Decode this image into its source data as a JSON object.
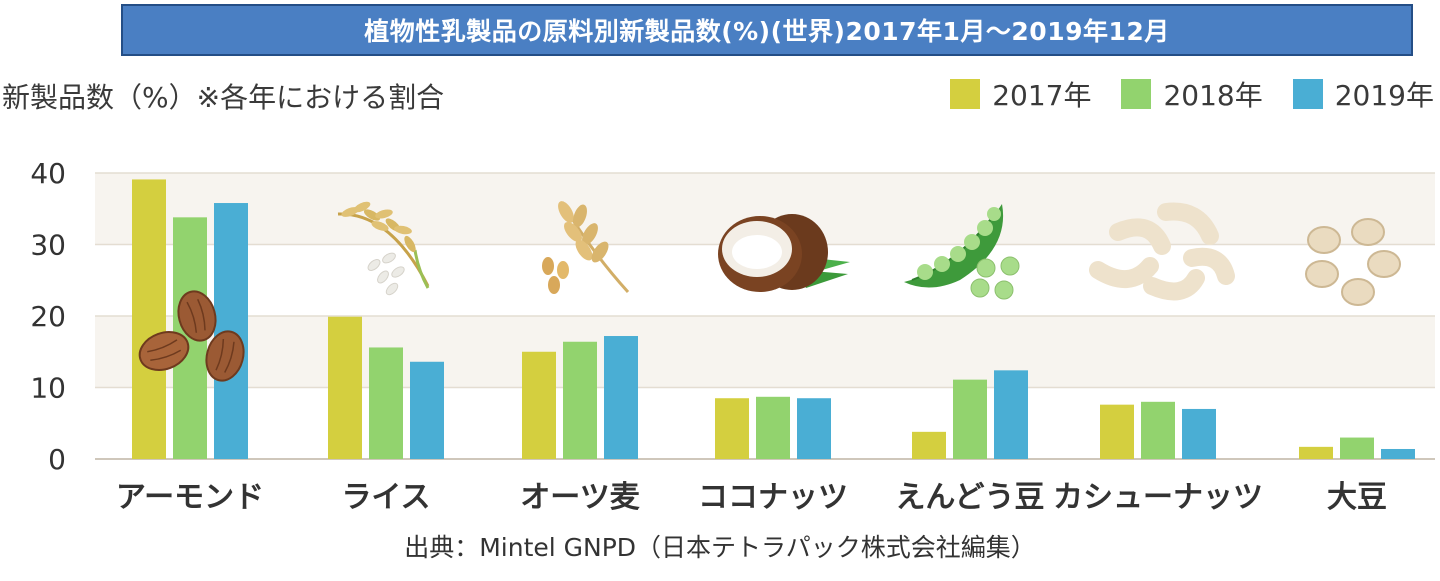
{
  "title": "植物性乳製品の原料別新製品数(%)(世界)2017年1月～2019年12月",
  "y_axis_caption": "新製品数（%）※各年における割合",
  "source": "出典：Mintel GNPD（日本テトラパック株式会社編集）",
  "colors": {
    "series_2017": "#d4cf3f",
    "series_2018": "#92d36e",
    "series_2019": "#4aaed4",
    "plot_band": "#f7f4ef",
    "grid": "#e4ddd2",
    "axis": "#cfc7bb"
  },
  "chart_data": {
    "type": "bar",
    "categories": [
      "アーモンド",
      "ライス",
      "オーツ麦",
      "ココナッツ",
      "えんどう豆",
      "カシューナッツ",
      "大豆"
    ],
    "series": [
      {
        "name": "2017年",
        "values": [
          39.1,
          19.9,
          15.0,
          8.5,
          3.8,
          7.6,
          1.7
        ]
      },
      {
        "name": "2018年",
        "values": [
          33.8,
          15.6,
          16.4,
          8.7,
          11.1,
          8.0,
          3.0
        ]
      },
      {
        "name": "2019年",
        "values": [
          35.8,
          13.6,
          17.2,
          8.5,
          12.4,
          7.0,
          1.4
        ]
      }
    ],
    "ylim": [
      0,
      40
    ],
    "yticks": [
      0,
      10,
      20,
      30,
      40
    ],
    "grid": true,
    "legend_position": "top-right",
    "category_icons": [
      "almond-icon",
      "rice-icon",
      "oat-icon",
      "coconut-icon",
      "pea-icon",
      "cashew-icon",
      "soybean-icon"
    ]
  }
}
